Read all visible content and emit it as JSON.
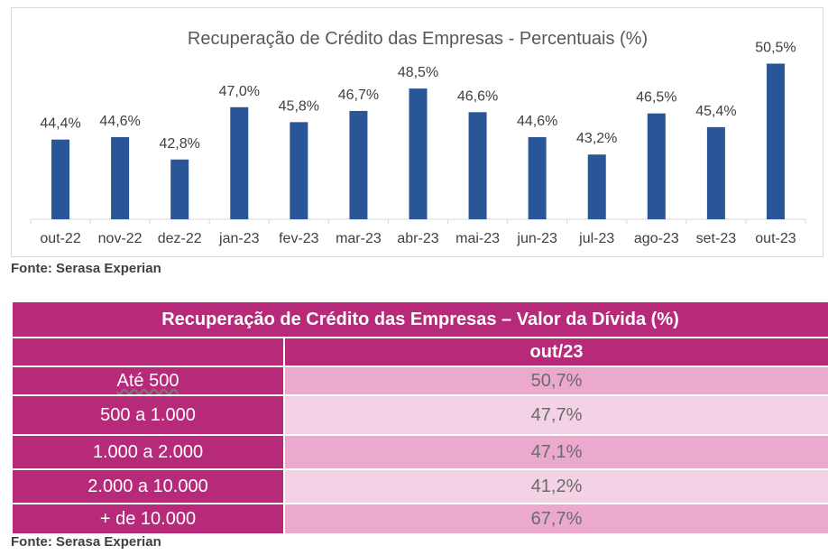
{
  "chart_data": {
    "type": "bar",
    "title": "Recuperação de Crédito das Empresas - Percentuais (%)",
    "categories": [
      "out-22",
      "nov-22",
      "dez-22",
      "jan-23",
      "fev-23",
      "mar-23",
      "abr-23",
      "mai-23",
      "jun-23",
      "jul-23",
      "ago-23",
      "set-23",
      "out-23"
    ],
    "values": [
      44.4,
      44.6,
      42.8,
      47.0,
      45.8,
      46.7,
      48.5,
      46.6,
      44.6,
      43.2,
      46.5,
      45.4,
      50.5
    ],
    "data_labels": [
      "44,4%",
      "44,6%",
      "42,8%",
      "47,0%",
      "45,8%",
      "46,7%",
      "48,5%",
      "46,6%",
      "44,6%",
      "43,2%",
      "46,5%",
      "45,4%",
      "50,5%"
    ],
    "xlabel": "",
    "ylabel": "",
    "grid": false,
    "bar_color": "#2a5597"
  },
  "source_1": "Fonte: Serasa Experian",
  "table": {
    "title": "Recuperação de Crédito das Empresas – Valor da Dívida (%)",
    "column_header": "out/23",
    "rows": [
      {
        "label": "Até 500",
        "value": "50,7%"
      },
      {
        "label": "500 a 1.000",
        "value": "47,7%"
      },
      {
        "label": "1.000 a 2.000",
        "value": "47,1%"
      },
      {
        "label": "2.000 a 10.000",
        "value": "41,2%"
      },
      {
        "label": "+ de 10.000",
        "value": "67,7%"
      }
    ],
    "colors": {
      "header": "#b72a7a",
      "row_dark": "#ebaacd",
      "row_light": "#f3d2e5"
    }
  },
  "source_2": "Fonte: Serasa Experian"
}
